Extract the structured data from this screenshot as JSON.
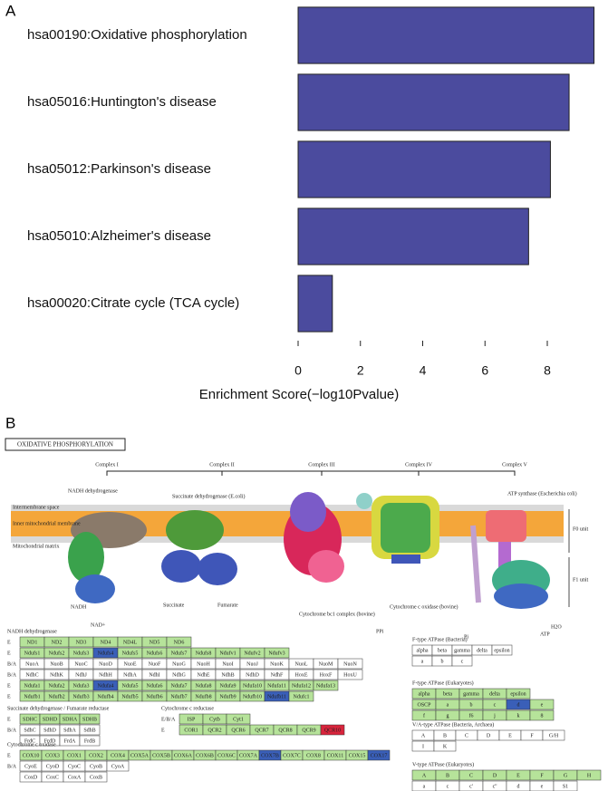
{
  "chart_data": {
    "type": "bar",
    "orientation": "horizontal",
    "panel": "A",
    "categories": [
      "hsa00190:Oxidative phosphorylation",
      "hsa05016:Huntington's disease",
      "hsa05012:Parkinson's disease",
      "hsa05010:Alzheimer's disease",
      "hsa00020:Citrate cycle (TCA cycle)"
    ],
    "values": [
      9.5,
      8.7,
      8.1,
      7.4,
      1.1
    ],
    "color": "#4b4b9e",
    "xlabel": "Enrichment Score(−log10Pvalue)",
    "xlim": [
      0,
      9.6
    ],
    "xticks": [
      0,
      2,
      4,
      6,
      8
    ]
  },
  "panel_b": {
    "panel": "B",
    "title": "OXIDATIVE PHOSPHORYLATION",
    "complexes": [
      "Complex I",
      "Complex II",
      "Complex III",
      "Complex IV",
      "Complex V"
    ],
    "labels": [
      "Intermembrane space",
      "Inner mitochondrial membrane",
      "Mitochondrial matrix",
      "NADH dehydrogenase",
      "Succinate dehydrogenase (E.coli)",
      "Cytochrome bc1 complex (bovine)",
      "Cytochrome c oxidase (bovine)",
      "ATP synthase (Escherichia coli)",
      "F0 unit",
      "F1 unit",
      "Succinate",
      "Fumarate",
      "NADH",
      "NAD+",
      "PPi",
      "Pi",
      "ATP",
      "H2O"
    ],
    "highlight_color": "#3a5fb8",
    "gene_color": "#b6e39a",
    "alert_color": "#d8243c",
    "highlighted": [
      "Ndufs4",
      "Ndufa4",
      "Ndufb11",
      "COX7B",
      "COX17",
      "d"
    ],
    "alert": [
      "QCR10"
    ],
    "tables": [
      {
        "title": "NADH dehydrogenase",
        "rows": [
          {
            "prefix": "E",
            "fill": true,
            "genes": [
              "ND1",
              "ND2",
              "ND3",
              "ND4",
              "ND4L",
              "ND5",
              "ND6"
            ]
          },
          {
            "prefix": "E",
            "fill": true,
            "genes": [
              "Ndufs1",
              "Ndufs2",
              "Ndufs3",
              "Ndufs4",
              "Ndufs5",
              "Ndufs6",
              "Ndufs7",
              "Ndufs8",
              "Ndufv1",
              "Ndufv2",
              "Ndufv3"
            ]
          },
          {
            "prefix": "B/A",
            "fill": false,
            "genes": [
              "NuoA",
              "NuoB",
              "NuoC",
              "NuoD",
              "NuoE",
              "NuoF",
              "NuoG",
              "NuoH",
              "NuoI",
              "NuoJ",
              "NuoK",
              "NuoL",
              "NuoM",
              "NuoN"
            ]
          },
          {
            "prefix": "B/A",
            "fill": false,
            "genes": [
              "NdhC",
              "NdhK",
              "NdhJ",
              "NdhH",
              "NdhA",
              "NdhI",
              "NdhG",
              "NdhE",
              "NdhB",
              "NdhD",
              "NdhF",
              "HoxE",
              "HoxF",
              "HoxU"
            ]
          },
          {
            "prefix": "E",
            "fill": true,
            "genes": [
              "Ndufa1",
              "Ndufa2",
              "Ndufa3",
              "Ndufa4",
              "Ndufa5",
              "Ndufa6",
              "Ndufa7",
              "Ndufa8",
              "Ndufa9",
              "Ndufa10",
              "Ndufa11",
              "Ndufa12",
              "Ndufa13"
            ]
          },
          {
            "prefix": "E",
            "fill": true,
            "genes": [
              "Ndufb1",
              "Ndufb2",
              "Ndufb3",
              "Ndufb4",
              "Ndufb5",
              "Ndufb6",
              "Ndufb7",
              "Ndufb8",
              "Ndufb9",
              "Ndufb10",
              "Ndufb11",
              "Ndufc1"
            ]
          }
        ]
      },
      {
        "title": "Succinate dehydrogenase / Fumarate reductase",
        "rows": [
          {
            "prefix": "E",
            "fill": true,
            "genes": [
              "SDHC",
              "SDHD",
              "SDHA",
              "SDHB"
            ]
          },
          {
            "prefix": "B/A",
            "fill": false,
            "genes": [
              "SdhC",
              "SdhD",
              "SdhA",
              "SdhB"
            ]
          },
          {
            "fill": false,
            "genes": [
              "FrdC",
              "FrdD",
              "FrdA",
              "FrdB"
            ]
          }
        ]
      },
      {
        "title": "Cytochrome c reductase",
        "rows": [
          {
            "prefix": "E/B/A",
            "fill": true,
            "genes": [
              "ISP",
              "Cytb",
              "Cyt1"
            ]
          },
          {
            "prefix": "E",
            "fill": true,
            "genes": [
              "COR1",
              "QCR2",
              "QCR6",
              "QCR7",
              "QCR8",
              "QCR9",
              "QCR10"
            ]
          }
        ]
      },
      {
        "title": "Cytochrome c oxidase",
        "rows": [
          {
            "prefix": "E",
            "fill": true,
            "genes": [
              "COX10",
              "COX3",
              "COX1",
              "COX2",
              "COX4",
              "COX5A",
              "COX5B",
              "COX6A",
              "COX6B",
              "COX6C",
              "COX7A",
              "COX7B",
              "COX7C",
              "COX8",
              "COX11",
              "COX15",
              "COX17"
            ]
          },
          {
            "prefix": "B/A",
            "fill": false,
            "genes": [
              "CyoE",
              "CyoD",
              "CyoC",
              "CyoB",
              "CyoA"
            ]
          },
          {
            "fill": false,
            "genes": [
              "CoxD",
              "CoxC",
              "CoxA",
              "CoxB"
            ]
          }
        ]
      },
      {
        "title": "F-type ATPase (Bacteria)",
        "rows": [
          {
            "fill": false,
            "genes": [
              "alpha",
              "beta",
              "gamma",
              "delta",
              "epsilon"
            ]
          },
          {
            "fill": false,
            "genes": [
              "a",
              "b",
              "c"
            ]
          }
        ]
      },
      {
        "title": "F-type ATPase (Eukaryotes)",
        "rows": [
          {
            "fill": true,
            "genes": [
              "alpha",
              "beta",
              "gamma",
              "delta",
              "epsilon"
            ]
          },
          {
            "fill": true,
            "genes": [
              "OSCP",
              "a",
              "b",
              "c",
              "d",
              "e"
            ]
          },
          {
            "fill": true,
            "genes": [
              "f",
              "g",
              "f6",
              "j",
              "k",
              "8"
            ]
          }
        ]
      },
      {
        "title": "V/A-type ATPase (Bacteria, Archaea)",
        "rows": [
          {
            "fill": false,
            "genes": [
              "A",
              "B",
              "C",
              "D",
              "E",
              "F",
              "G/H"
            ]
          },
          {
            "fill": false,
            "genes": [
              "I",
              "K"
            ]
          }
        ]
      },
      {
        "title": "V-type ATPase (Eukaryotes)",
        "rows": [
          {
            "fill": true,
            "genes": [
              "A",
              "B",
              "C",
              "D",
              "E",
              "F",
              "G",
              "H"
            ]
          },
          {
            "fill": false,
            "genes": [
              "a",
              "c",
              "c'",
              "c''",
              "d",
              "e",
              "S1"
            ]
          }
        ]
      }
    ]
  }
}
